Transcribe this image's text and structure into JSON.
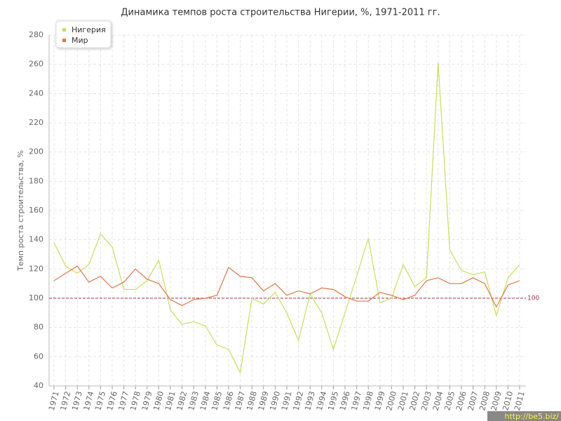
{
  "chart_data": {
    "type": "line",
    "title": "Динамика темпов роста строительства Нигерии, %, 1971-2011 гг.",
    "y_label": "Темп роста строительства, %",
    "categories": [
      "1971",
      "1972",
      "1973",
      "1974",
      "1975",
      "1976",
      "1977",
      "1978",
      "1979",
      "1980",
      "1981",
      "1982",
      "1983",
      "1984",
      "1985",
      "1986",
      "1987",
      "1988",
      "1989",
      "1990",
      "1991",
      "1992",
      "1993",
      "1994",
      "1995",
      "1996",
      "1997",
      "1998",
      "1999",
      "2000",
      "2001",
      "2002",
      "2003",
      "2004",
      "2005",
      "2006",
      "2007",
      "2008",
      "2009",
      "2010",
      "2011"
    ],
    "series": [
      {
        "name": "Нигерия",
        "color": "#c5e05a",
        "values": [
          138,
          122,
          117,
          123,
          144,
          135,
          106,
          106,
          112,
          126,
          92,
          82,
          84,
          81,
          68,
          65,
          49,
          100,
          96,
          104,
          90,
          71,
          103,
          90,
          65,
          90,
          115,
          141,
          97,
          100,
          123,
          108,
          114,
          261,
          133,
          119,
          116,
          118,
          88,
          114,
          123
        ]
      },
      {
        "name": "Мир",
        "color": "#e0774a",
        "values": [
          112,
          117,
          122,
          111,
          115,
          107,
          111,
          120,
          113,
          110,
          99,
          95,
          99,
          100,
          102,
          121,
          115,
          114,
          105,
          110,
          102,
          105,
          103,
          107,
          106,
          101,
          98,
          98,
          104,
          102,
          99,
          102,
          112,
          114,
          110,
          110,
          114,
          110,
          94,
          109,
          112
        ]
      }
    ],
    "reference_line": 100,
    "ylim": [
      40,
      280
    ],
    "yticks": [
      40,
      60,
      80,
      100,
      120,
      140,
      160,
      180,
      200,
      220,
      240,
      260,
      280
    ],
    "grid": true,
    "legend": "top-left",
    "watermark": "http://be5.biz/"
  }
}
